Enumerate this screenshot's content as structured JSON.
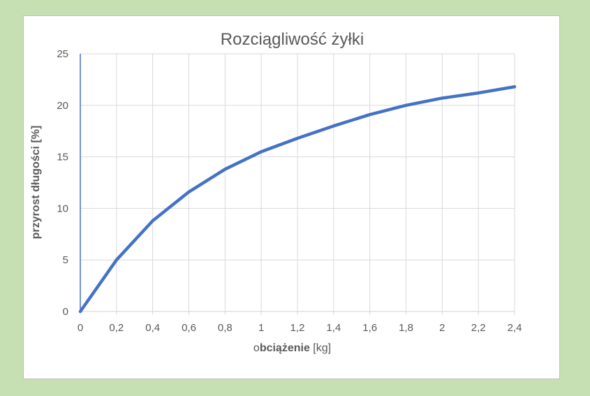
{
  "colors": {
    "background": "#c6e0b4",
    "card": "#ffffff",
    "line": "#4472c4",
    "grid": "#d9d9d9",
    "text": "#595959"
  },
  "chart_data": {
    "type": "line",
    "title": "Rozciągliwość żyłki",
    "xlabel_parts": [
      "o",
      "bciążenie",
      " [kg]"
    ],
    "ylabel_parts": [
      "przyrost długości [%]"
    ],
    "x": [
      0,
      0.2,
      0.4,
      0.6,
      0.8,
      1.0,
      1.2,
      1.4,
      1.6,
      1.8,
      2.0,
      2.2,
      2.4
    ],
    "xtick_labels": [
      "0",
      "0,2",
      "0,4",
      "0,6",
      "0,8",
      "1",
      "1,2",
      "1,4",
      "1,6",
      "1,8",
      "2",
      "2,2",
      "2,4"
    ],
    "ytick_labels": [
      "0",
      "5",
      "10",
      "15",
      "20",
      "25"
    ],
    "yticks": [
      0,
      5,
      10,
      15,
      20,
      25
    ],
    "xlim": [
      0,
      2.4
    ],
    "ylim": [
      0,
      25
    ],
    "grid": true,
    "legend": "none",
    "series": [
      {
        "values": [
          0,
          5.0,
          8.8,
          11.6,
          13.8,
          15.5,
          16.8,
          18.0,
          19.1,
          20.0,
          20.7,
          21.2,
          21.8
        ]
      }
    ]
  }
}
